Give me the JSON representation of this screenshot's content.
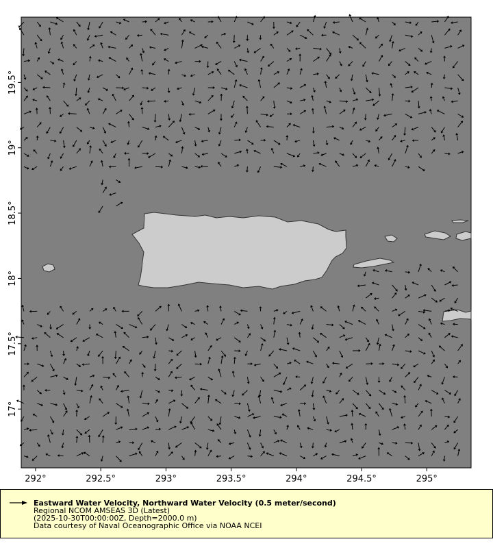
{
  "map": {
    "type": "vector-field",
    "lon_range": [
      291.89,
      295.34
    ],
    "lat_range": [
      16.55,
      20.0
    ],
    "x_ticks": [
      "292°",
      "292.5°",
      "293°",
      "293.5°",
      "294°",
      "294.5°",
      "295°"
    ],
    "y_ticks": [
      "19.5°",
      "19°",
      "18.5°",
      "18°",
      "17.5°",
      "17°"
    ],
    "x_tick_values": [
      292,
      292.5,
      293,
      293.5,
      294,
      294.5,
      295
    ],
    "y_tick_values": [
      19.5,
      19,
      18.5,
      18,
      17.5,
      17
    ],
    "colors": {
      "ocean": "#808080",
      "land": "#cccccc",
      "coast": "#333333",
      "arrow": "#000000",
      "legend_bg": "#ffffcc"
    }
  },
  "legend": {
    "title": "Eastward Water Velocity, Northward Water Velocity (0.5 meter/second)",
    "line2": "Regional NCOM AMSEAS 3D (Latest)",
    "line3": "(2025-10-30T00:00:00Z, Depth=2000.0 m)",
    "line4": "Data courtesy of Naval Oceanographic Office via NOAA NCEI"
  }
}
